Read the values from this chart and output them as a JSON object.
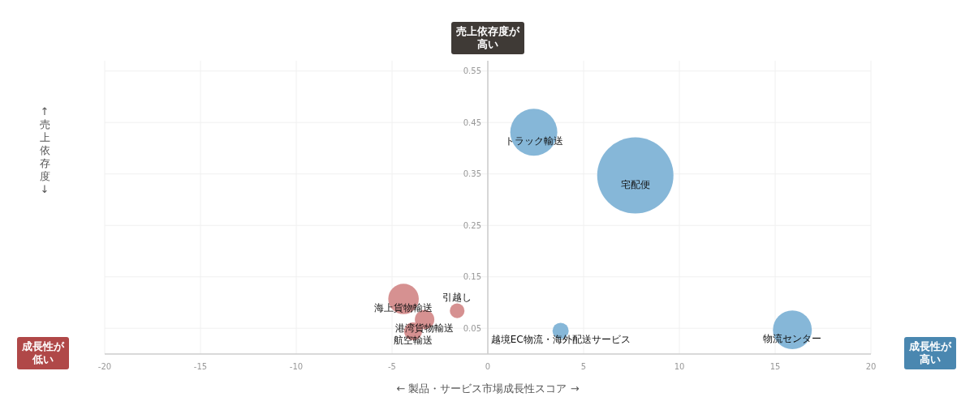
{
  "chart_data": {
    "type": "bubble",
    "xlabel": "← 製品・サービス市場成長性スコア →",
    "ylabel": "↑売上依存度↓",
    "xlim": [
      -20,
      20
    ],
    "xticks": [
      -20,
      -15,
      -10,
      -5,
      0,
      5,
      10,
      15,
      20
    ],
    "ylim": [
      0,
      0.57
    ],
    "yticks": [
      0.05,
      0.15,
      0.25,
      0.35,
      0.45,
      0.55
    ],
    "grid": true,
    "series": [
      {
        "color": "#80b3d6",
        "x": [
          2.4,
          7.7,
          3.8,
          15.9
        ],
        "values": [
          0.431,
          0.347,
          0.045,
          0.047
        ],
        "sizes": [
          0.38,
          1,
          0.045,
          0.26
        ]
      },
      {
        "color": "#d48b8b",
        "x": [
          -4.4,
          -1.6,
          -3.3,
          -3.9
        ],
        "values": [
          0.107,
          0.084,
          0.067,
          0.044
        ],
        "sizes": [
          0.16,
          0.037,
          0.065,
          0.055
        ]
      }
    ],
    "annotations": [
      "売上依存度が高い",
      "成長性が低い",
      "成長性が高い",
      {
        "text": "トラック輸送",
        "x": 2.4,
        "y": 0.431
      },
      {
        "text": "宅配便",
        "x": 7.7,
        "y": 0.347
      },
      {
        "text": "越境EC物流・海外配送サービス",
        "x": 3.8,
        "y": 0.045
      },
      {
        "text": "物流センター",
        "x": 15.9,
        "y": 0.047
      },
      {
        "text": "海上貨物輸送",
        "x": -4.4,
        "y": 0.107
      },
      {
        "text": "引越し",
        "x": -1.6,
        "y": 0.084
      },
      {
        "text": "港湾貨物輸送",
        "x": -3.3,
        "y": 0.067
      },
      {
        "text": "航空輸送",
        "x": -3.9,
        "y": 0.044
      }
    ]
  }
}
